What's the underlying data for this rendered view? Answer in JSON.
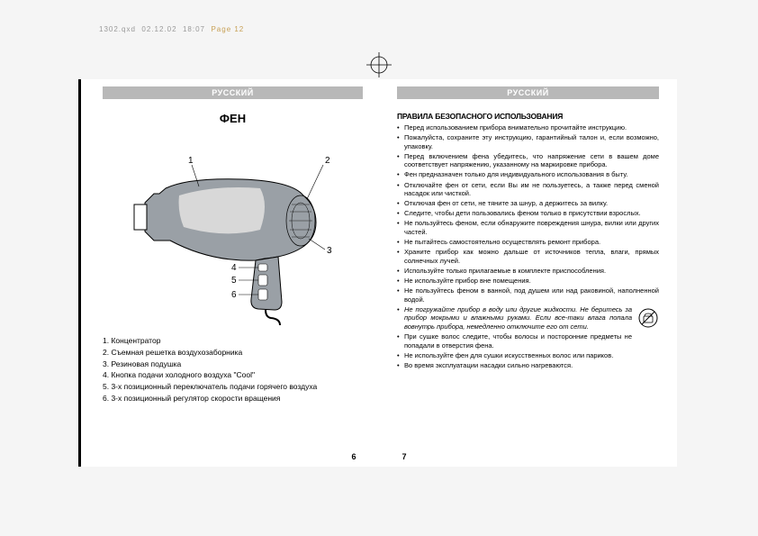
{
  "print_header": {
    "file": "1302.qxd",
    "date": "02.12.02",
    "time": "18:07",
    "page_label": "Page 12"
  },
  "left_page": {
    "lang": "РУССКИЙ",
    "title": "ФЕН",
    "diagram": {
      "labels": [
        "1",
        "2",
        "3",
        "4",
        "5",
        "6"
      ],
      "body_color": "#9aa0a6",
      "handle_color": "#9aa0a6",
      "stroke": "#000000"
    },
    "parts": [
      "1. Концентратор",
      "2. Съемная решетка воздухозаборника",
      "3. Резиновая подушка",
      "4. Кнопка подачи холодного воздуха \"Cool\"",
      "5. 3-х позиционный переключатель подачи горячего воздуха",
      "6. 3-х позиционный регулятор скорости вращения"
    ],
    "page_num": "6"
  },
  "right_page": {
    "lang": "РУССКИЙ",
    "rules_title": "ПРАВИЛА БЕЗОПАСНОГО ИСПОЛЬЗОВАНИЯ",
    "rules": [
      {
        "t": "Перед использованием прибора внимательно прочитайте инструкцию."
      },
      {
        "t": "Пожалуйста, сохраните эту инструкцию, гарантийный талон и, если возможно, упаковку."
      },
      {
        "t": "Перед включением фена убедитесь, что напряжение сети в вашем доме соответствует напряжению, указанному на маркировке прибора."
      },
      {
        "t": "Фен предназначен только для индивидуального использования в быту."
      },
      {
        "t": "Отключайте фен от сети, если Вы им не пользуетесь, а также перед сменой насадок или чисткой."
      },
      {
        "t": "Отключая фен от сети, не тяните за шнур, а держитесь за вилку."
      },
      {
        "t": "Следите, чтобы дети пользовались феном только в присутствии взрослых."
      },
      {
        "t": "Не пользуйтесь феном, если обнаружите повреждения шнура, вилки или других частей."
      },
      {
        "t": "Не пытайтесь самостоятельно осуществлять ремонт прибора."
      },
      {
        "t": "Храните прибор как можно дальше от источников тепла, влаги, прямых солнечных лучей."
      },
      {
        "t": "Используйте только прилагаемые в комплекте приспособления."
      },
      {
        "t": "Не используйте прибор вне помещения."
      },
      {
        "t": "Не пользуйтесь феном в ванной, под душем или над раковиной, наполненной водой."
      },
      {
        "t": "Не погружайте прибор в воду или другие жидкости. Не беритесь за прибор мокрыми и влажными руками. Если все-таки влага попала вовнутрь прибора, немедленно отключите его от сети.",
        "italic": true,
        "icon": true
      },
      {
        "t": "При сушке волос следите, чтобы волосы и посторонние предметы не попадали в отверстия фена."
      },
      {
        "t": "Не используйте фен для сушки искусственных волос или париков."
      },
      {
        "t": "Во время эксплуатации насадки сильно нагреваются."
      }
    ],
    "page_num": "7"
  },
  "colors": {
    "lang_bar_bg": "#b8b8b8",
    "lang_bar_fg": "#ffffff",
    "crop_mark": "#000000",
    "page_bg": "#ffffff",
    "body_bg": "#f5f5f5"
  }
}
